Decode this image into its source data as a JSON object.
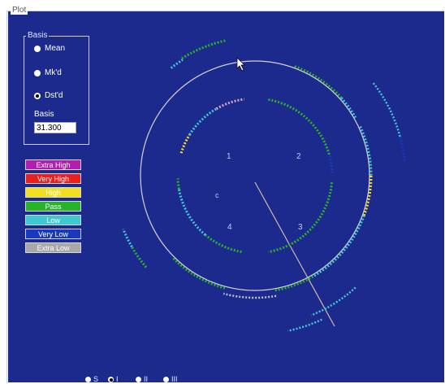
{
  "plot_frame": {
    "label": "Plot"
  },
  "basis_group": {
    "label": "Basis",
    "options": [
      {
        "label": "Mean",
        "selected": false
      },
      {
        "label": "Mk'd",
        "selected": false
      },
      {
        "label": "Dst'd",
        "selected": true
      }
    ],
    "value_label": "Basis",
    "value": "31.300"
  },
  "legend": [
    {
      "label": "Extra High",
      "color": "#b01fb0"
    },
    {
      "label": "Very High",
      "color": "#e82020"
    },
    {
      "label": "High",
      "color": "#f0e020"
    },
    {
      "label": "Pass",
      "color": "#28b428"
    },
    {
      "label": "Low",
      "color": "#40c8d0"
    },
    {
      "label": "Very Low",
      "color": "#1838c0"
    },
    {
      "label": "Extra Low",
      "color": "#a8a8a8"
    }
  ],
  "quadrants": [
    "1",
    "2",
    "3",
    "4"
  ],
  "center_marker": "c",
  "bottom_options": [
    {
      "label": "S",
      "selected": false
    },
    {
      "label": "I",
      "selected": true
    },
    {
      "label": "II",
      "selected": false
    },
    {
      "label": "III",
      "selected": false
    }
  ]
}
